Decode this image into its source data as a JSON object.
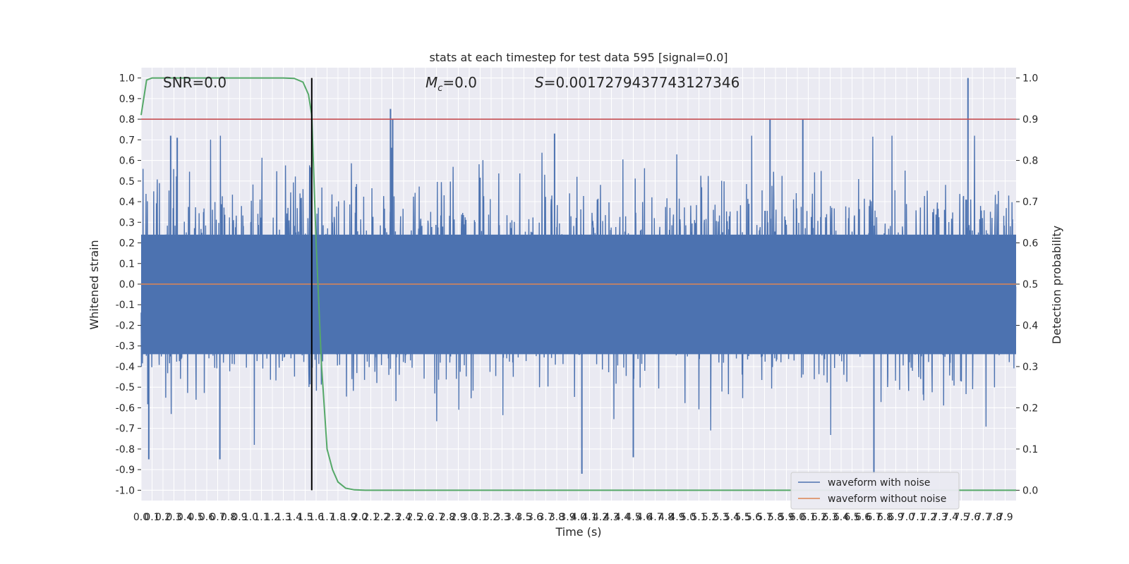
{
  "chart_data": {
    "type": "line",
    "title": "stats at each timestep for test data 595 [signal=0.0]",
    "xlabel": "Time (s)",
    "ylabel": "Whitened strain",
    "y2label": "Detection probability",
    "xlim": [
      0,
      8
    ],
    "ylim": [
      -1.05,
      1.05
    ],
    "y2lim": [
      -0.025,
      1.025
    ],
    "x_ticks": [
      "0.0",
      "0.1",
      "0.2",
      "0.3",
      "0.4",
      "0.5",
      "0.6",
      "0.7",
      "0.8",
      "0.9",
      "1.0",
      "1.1",
      "1.2",
      "1.3",
      "1.4",
      "1.5",
      "1.6",
      "1.7",
      "1.8",
      "1.9",
      "2.0",
      "2.1",
      "2.2",
      "2.3",
      "2.4",
      "2.5",
      "2.6",
      "2.7",
      "2.8",
      "2.9",
      "3.0",
      "3.1",
      "3.2",
      "3.3",
      "3.4",
      "3.5",
      "3.6",
      "3.7",
      "3.8",
      "3.9",
      "4.0",
      "4.1",
      "4.2",
      "4.3",
      "4.4",
      "4.5",
      "4.6",
      "4.7",
      "4.8",
      "4.9",
      "5.0",
      "5.1",
      "5.2",
      "5.3",
      "5.4",
      "5.5",
      "5.6",
      "5.7",
      "5.8",
      "5.9",
      "6.0",
      "6.1",
      "6.2",
      "6.3",
      "6.4",
      "6.5",
      "6.6",
      "6.7",
      "6.8",
      "6.9",
      "7.0",
      "7.1",
      "7.2",
      "7.3",
      "7.4",
      "7.5",
      "7.6",
      "7.7",
      "7.8",
      "7.9"
    ],
    "y_ticks": [
      "1.0",
      "0.9",
      "0.8",
      "0.7",
      "0.6",
      "0.5",
      "0.4",
      "0.3",
      "0.2",
      "0.1",
      "0.0",
      "-0.1",
      "-0.2",
      "-0.3",
      "-0.4",
      "-0.5",
      "-0.6",
      "-0.7",
      "-0.8",
      "-0.9",
      "-1.0"
    ],
    "y2_ticks": [
      "1.0",
      "0.9",
      "0.8",
      "0.7",
      "0.6",
      "0.5",
      "0.4",
      "0.3",
      "0.2",
      "0.1",
      "0.0"
    ],
    "annotations": {
      "snr": "SNR=0.0",
      "mc": "=0.0",
      "mc_symbol": "M",
      "mc_sub": "c",
      "s": "=0.0017279437743127346",
      "s_symbol": "S"
    },
    "series": [
      {
        "name": "waveform with noise",
        "color": "#4c72b0",
        "axis": "left",
        "note_shape": "dense noise trace",
        "envelope_peaks_x": [
          0.07,
          0.27,
          0.33,
          0.72,
          2.28,
          2.3,
          3.78,
          4.03,
          4.5,
          5.75,
          6.05,
          6.7,
          7.56
        ],
        "envelope_peaks_y": [
          -0.85,
          0.72,
          0.71,
          -0.85,
          0.85,
          0.8,
          0.73,
          -0.92,
          -0.84,
          0.8,
          0.8,
          -0.92,
          1.0
        ]
      },
      {
        "name": "waveform without noise",
        "color": "#dd8452",
        "axis": "left",
        "x": [
          0,
          8
        ],
        "y": [
          0,
          0
        ]
      },
      {
        "color": "#55a868",
        "axis": "right",
        "x": [
          0.0,
          0.05,
          0.1,
          0.2,
          0.5,
          1.0,
          1.3,
          1.4,
          1.48,
          1.53,
          1.56,
          1.6,
          1.65,
          1.7,
          1.75,
          1.8,
          1.87,
          1.95,
          2.05,
          2.5,
          3.5,
          5.0,
          6.0,
          7.0,
          8.0
        ],
        "y": [
          0.91,
          0.995,
          1.0,
          1.0,
          1.0,
          1.0,
          1.0,
          0.999,
          0.99,
          0.96,
          0.91,
          0.6,
          0.3,
          0.1,
          0.05,
          0.02,
          0.005,
          0.001,
          0.0,
          0.0,
          0.0,
          0.0,
          0.0,
          0.0,
          0.0
        ]
      },
      {
        "color": "#c44e52",
        "axis": "right",
        "x": [
          0,
          8
        ],
        "y": [
          0.9,
          0.9
        ]
      },
      {
        "color": "#000000",
        "axis": "vertical",
        "x": [
          1.56,
          1.56
        ],
        "y": [
          0.0,
          1.0
        ]
      }
    ],
    "grid": true,
    "legend": "bottom-right"
  }
}
